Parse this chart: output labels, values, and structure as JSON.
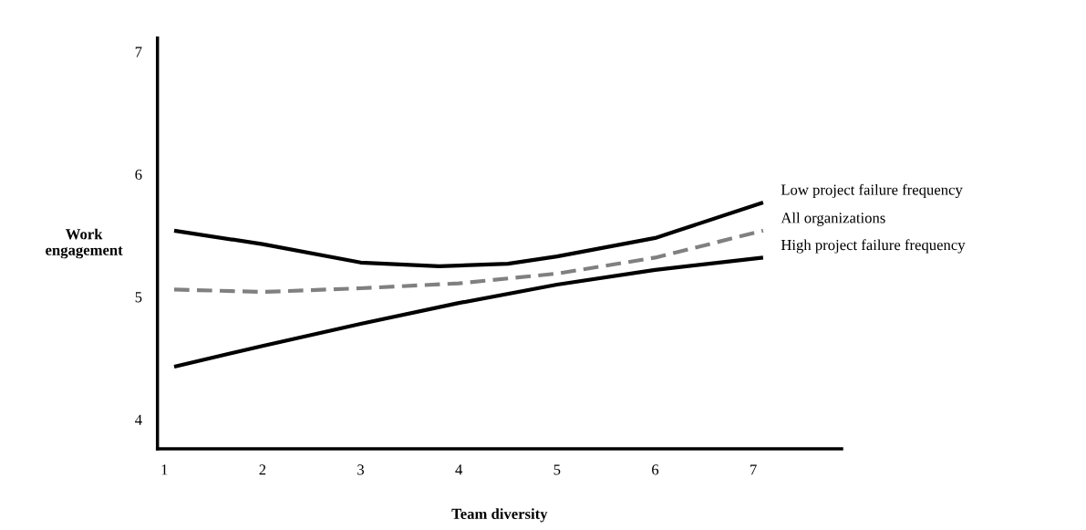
{
  "chart_data": {
    "type": "line",
    "xlabel": "Team diversity",
    "ylabel": "Work\nengagement",
    "xlim": [
      0.93,
      7.9
    ],
    "ylim": [
      3.76,
      7.11
    ],
    "xticks": [
      1,
      2,
      3,
      4,
      5,
      6,
      7
    ],
    "yticks": [
      4,
      5,
      6,
      7
    ],
    "grid": false,
    "legend": false,
    "marker": "none",
    "series": [
      {
        "name": "Low project failure frequency",
        "color": "#000000",
        "line_style": "solid",
        "x": [
          1.1,
          2,
          3,
          3.8,
          4.5,
          5,
          6,
          7.1
        ],
        "values": [
          5.54,
          5.43,
          5.28,
          5.25,
          5.27,
          5.33,
          5.48,
          5.77
        ]
      },
      {
        "name": "All organizations",
        "color": "#808080",
        "line_style": "dashed",
        "x": [
          1.1,
          2,
          3,
          4,
          5,
          6,
          7.1
        ],
        "values": [
          5.06,
          5.04,
          5.07,
          5.11,
          5.19,
          5.32,
          5.54
        ]
      },
      {
        "name": "High project failure frequency",
        "color": "#000000",
        "line_style": "solid",
        "x": [
          1.1,
          2,
          3,
          4,
          5,
          6,
          7.1
        ],
        "values": [
          4.43,
          4.6,
          4.78,
          4.95,
          5.1,
          5.22,
          5.32
        ]
      }
    ]
  }
}
